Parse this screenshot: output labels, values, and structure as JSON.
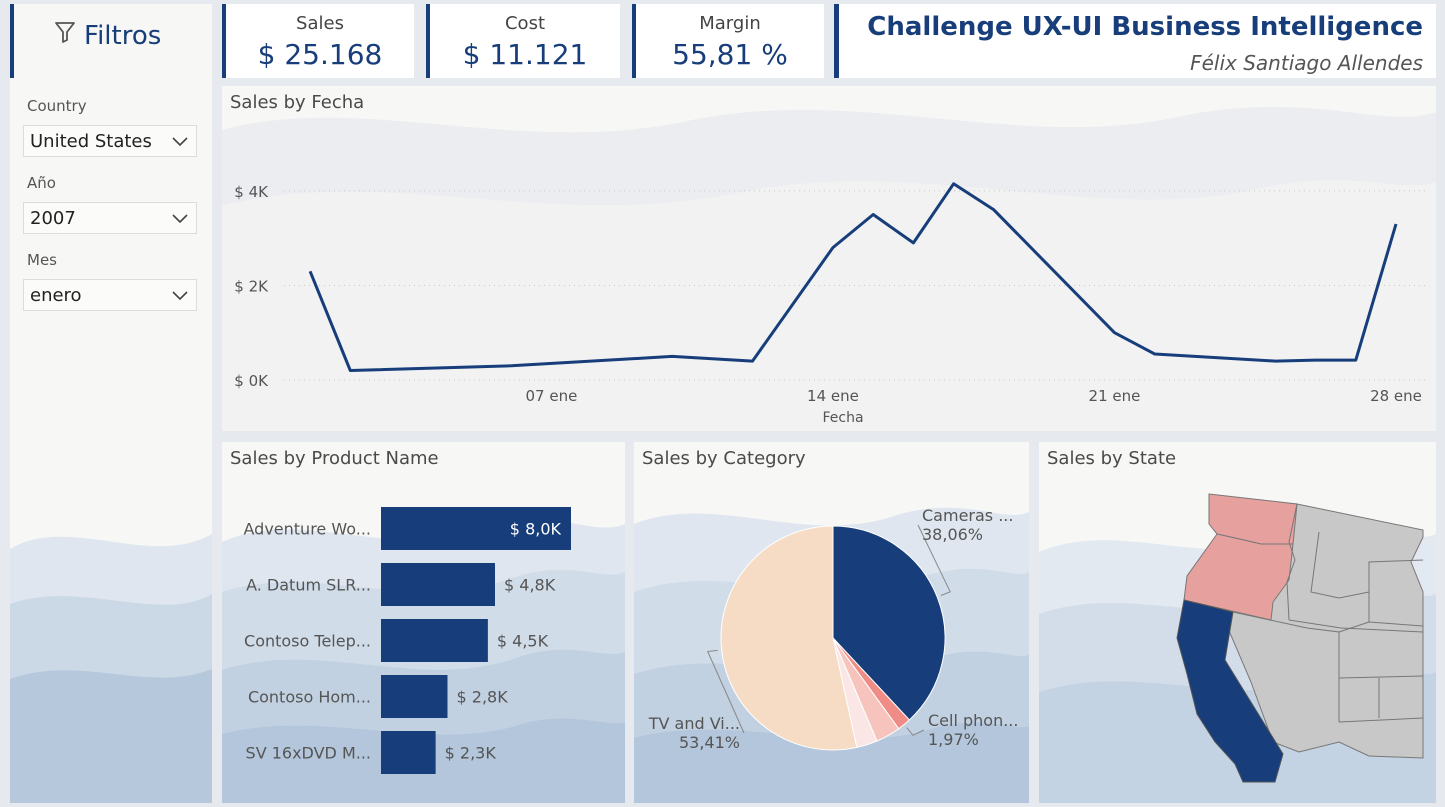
{
  "filters": {
    "title": "Filtros",
    "country": {
      "label": "Country",
      "value": "United States"
    },
    "year": {
      "label": "Año",
      "value": "2007"
    },
    "month": {
      "label": "Mes",
      "value": "enero"
    }
  },
  "kpis": {
    "sales": {
      "label": "Sales",
      "value": "$ 25.168"
    },
    "cost": {
      "label": "Cost",
      "value": "$ 11.121"
    },
    "margin": {
      "label": "Margin",
      "value": "55,81 %"
    }
  },
  "header": {
    "title": "Challenge UX-UI Business Intelligence",
    "author": "Félix Santiago Allendes"
  },
  "icons": {
    "filter": "filter-funnel-icon",
    "dropdown": "chevron-down-icon"
  },
  "colors": {
    "accent": "#173e7a",
    "pie": [
      "#173e7a",
      "#f08c86",
      "#f6c4bd",
      "#fae6e4",
      "#f7dcc5"
    ],
    "map_highlight": "#e6a19e",
    "map_gray": "#c8c8c8"
  },
  "chart_data": [
    {
      "type": "line",
      "title": "Sales by Fecha",
      "xlabel": "Fecha",
      "ylabel": "",
      "x": [
        1,
        2,
        6,
        10,
        12,
        14,
        15,
        16,
        17,
        18,
        21,
        22,
        25,
        26,
        27,
        28
      ],
      "values": [
        2300,
        200,
        300,
        500,
        400,
        2800,
        3500,
        2900,
        4150,
        3600,
        1000,
        550,
        400,
        420,
        420,
        3300
      ],
      "xlim": [
        0.5,
        28
      ],
      "ylim": [
        0,
        4400
      ],
      "x_ticks": [
        {
          "value": 7,
          "label": "07 ene"
        },
        {
          "value": 14,
          "label": "14 ene"
        },
        {
          "value": 21,
          "label": "21 ene"
        },
        {
          "value": 28,
          "label": "28 ene"
        }
      ],
      "y_ticks": [
        {
          "value": 0,
          "label": "$ 0K"
        },
        {
          "value": 2000,
          "label": "$ 2K"
        },
        {
          "value": 4000,
          "label": "$ 4K"
        }
      ],
      "grid": true
    },
    {
      "type": "bar",
      "orientation": "horizontal",
      "title": "Sales by Product Name",
      "categories": [
        "Adventure Wo...",
        "A. Datum SLR...",
        "Contoso Telep...",
        "Contoso Hom...",
        "SV 16xDVD M..."
      ],
      "values": [
        8.0,
        4.8,
        4.5,
        2.8,
        2.3
      ],
      "data_labels": [
        "$ 8,0K",
        "$ 4,8K",
        "$ 4,5K",
        "$ 2,8K",
        "$ 2,3K"
      ],
      "xlim": [
        0,
        8.0
      ],
      "unit": "K"
    },
    {
      "type": "pie",
      "title": "Sales by Category",
      "slices": [
        {
          "name": "Cameras ...",
          "percent": 38.06,
          "label": "38,06%"
        },
        {
          "name": "Cell phon...",
          "percent": 1.97,
          "label": "1,97%"
        },
        {
          "name": "",
          "percent": 3.56,
          "label": ""
        },
        {
          "name": "",
          "percent": 3.0,
          "label": ""
        },
        {
          "name": "TV and Vi...",
          "percent": 53.41,
          "label": "53,41%"
        }
      ]
    },
    {
      "type": "map",
      "title": "Sales by State",
      "highlighted_states": [
        {
          "state": "California",
          "level": "high"
        },
        {
          "state": "Washington",
          "level": "medium"
        },
        {
          "state": "Oregon",
          "level": "medium"
        }
      ]
    }
  ]
}
